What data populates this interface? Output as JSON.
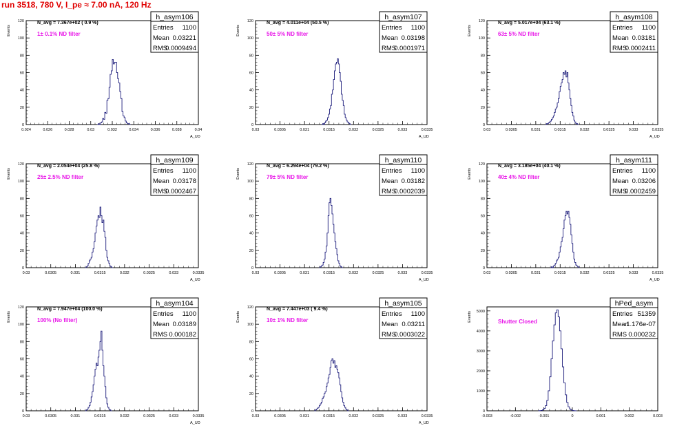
{
  "title": "run 3518,   780 V, I_pe ≈ 7.00 nA, 120 Hz",
  "colors": {
    "hist": "#1a1a7a",
    "title": "#e00000",
    "filter_text": "#e815e8"
  },
  "stats_labels": {
    "entries": "Entries",
    "mean": "Mean",
    "rms": "RMS"
  },
  "panels": [
    {
      "hist_name": "h_asym106",
      "entries": "1100",
      "mean": "0.03221",
      "rms": "0.0009494",
      "navg": "N_avg = 7.367e+02 ( 0.9 %)",
      "filter": "1± 0.1% ND filter",
      "ylabel": "Events",
      "xlabel": "A_UD",
      "xrange": [
        0.024,
        0.04
      ],
      "yrange": [
        0,
        120
      ],
      "xticks": [
        "0.024",
        "0.026",
        "0.028",
        "0.03",
        "0.032",
        "0.034",
        "0.036",
        "0.038",
        "0.04"
      ],
      "xtick_values": [
        0.024,
        0.026,
        0.028,
        0.03,
        0.032,
        0.034,
        0.036,
        0.038,
        0.04
      ],
      "yticks": [
        0,
        20,
        40,
        60,
        80,
        100,
        120
      ]
    },
    {
      "hist_name": "h_asym107",
      "entries": "1100",
      "mean": "0.03198",
      "rms": "0.0001971",
      "navg": "N_avg = 4.011e+04 (50.5 %)",
      "filter": "50± 5% ND filter",
      "ylabel": "Events",
      "xlabel": "A_UD",
      "xrange": [
        0.03,
        0.0335
      ],
      "yrange": [
        0,
        120
      ],
      "xticks": [
        "0.03",
        "0.0305",
        "0.031",
        "0.0315",
        "0.032",
        "0.0325",
        "0.033",
        "0.0335"
      ],
      "xtick_values": [
        0.03,
        0.0305,
        0.031,
        0.0315,
        0.032,
        0.0325,
        0.033,
        0.0335
      ],
      "yticks": [
        0,
        20,
        40,
        60,
        80,
        100,
        120
      ]
    },
    {
      "hist_name": "h_asym108",
      "entries": "1100",
      "mean": "0.03181",
      "rms": "0.0002411",
      "navg": "N_avg = 5.017e+04 (63.1 %)",
      "filter": "63± 5% ND filter",
      "ylabel": "Events",
      "xlabel": "A_UD",
      "xrange": [
        0.03,
        0.0335
      ],
      "yrange": [
        0,
        120
      ],
      "xticks": [
        "0.03",
        "0.0305",
        "0.031",
        "0.0315",
        "0.032",
        "0.0325",
        "0.033",
        "0.0335"
      ],
      "xtick_values": [
        0.03,
        0.0305,
        0.031,
        0.0315,
        0.032,
        0.0325,
        0.033,
        0.0335
      ],
      "yticks": [
        0,
        20,
        40,
        60,
        80,
        100,
        120
      ]
    },
    {
      "hist_name": "h_asym109",
      "entries": "1100",
      "mean": "0.03178",
      "rms": "0.0002467",
      "navg": "N_avg = 2.054e+04 (25.8 %)",
      "filter": "25± 2.5% ND filter",
      "ylabel": "Events",
      "xlabel": "A_UD",
      "xrange": [
        0.03,
        0.0335
      ],
      "yrange": [
        0,
        120
      ],
      "xticks": [
        "0.03",
        "0.0305",
        "0.031",
        "0.0315",
        "0.032",
        "0.0325",
        "0.033",
        "0.0335"
      ],
      "xtick_values": [
        0.03,
        0.0305,
        0.031,
        0.0315,
        0.032,
        0.0325,
        0.033,
        0.0335
      ],
      "yticks": [
        0,
        20,
        40,
        60,
        80,
        100,
        120
      ]
    },
    {
      "hist_name": "h_asym110",
      "entries": "1100",
      "mean": "0.03182",
      "rms": "0.0002039",
      "navg": "N_avg = 6.294e+04 (79.2 %)",
      "filter": "79± 5% ND filter",
      "ylabel": "Events",
      "xlabel": "A_UD",
      "xrange": [
        0.03,
        0.0335
      ],
      "yrange": [
        0,
        120
      ],
      "xticks": [
        "0.03",
        "0.0305",
        "0.031",
        "0.0315",
        "0.032",
        "0.0325",
        "0.033",
        "0.0335"
      ],
      "xtick_values": [
        0.03,
        0.0305,
        0.031,
        0.0315,
        0.032,
        0.0325,
        0.033,
        0.0335
      ],
      "yticks": [
        0,
        20,
        40,
        60,
        80,
        100,
        120
      ]
    },
    {
      "hist_name": "h_asym111",
      "entries": "1100",
      "mean": "0.03206",
      "rms": "0.0002459",
      "navg": "N_avg = 3.185e+04 (40.1 %)",
      "filter": "40± 4% ND filter",
      "ylabel": "Events",
      "xlabel": "A_UD",
      "xrange": [
        0.03,
        0.0335
      ],
      "yrange": [
        0,
        120
      ],
      "xticks": [
        "0.03",
        "0.0305",
        "0.031",
        "0.0315",
        "0.032",
        "0.0325",
        "0.033",
        "0.0335"
      ],
      "xtick_values": [
        0.03,
        0.0305,
        0.031,
        0.0315,
        0.032,
        0.0325,
        0.033,
        0.0335
      ],
      "yticks": [
        0,
        20,
        40,
        60,
        80,
        100,
        120
      ]
    },
    {
      "hist_name": "h_asym104",
      "entries": "1100",
      "mean": "0.03189",
      "rms": "0.000182",
      "navg": "N_avg = 7.947e+04 (100.0 %)",
      "filter": "100% (No filter)",
      "ylabel": "Events",
      "xlabel": "A_UD",
      "xrange": [
        0.03,
        0.0335
      ],
      "yrange": [
        0,
        120
      ],
      "xticks": [
        "0.03",
        "0.0305",
        "0.031",
        "0.0315",
        "0.032",
        "0.0325",
        "0.033",
        "0.0335"
      ],
      "xtick_values": [
        0.03,
        0.0305,
        0.031,
        0.0315,
        0.032,
        0.0325,
        0.033,
        0.0335
      ],
      "yticks": [
        0,
        20,
        40,
        60,
        80,
        100,
        120
      ]
    },
    {
      "hist_name": "h_asym105",
      "entries": "1100",
      "mean": "0.03211",
      "rms": "0.0003022",
      "navg": "N_avg = 7.447e+03 ( 9.4 %)",
      "filter": "10± 1% ND filter",
      "ylabel": "Events",
      "xlabel": "A_UD",
      "xrange": [
        0.03,
        0.0335
      ],
      "yrange": [
        0,
        120
      ],
      "xticks": [
        "0.03",
        "0.0305",
        "0.031",
        "0.0315",
        "0.032",
        "0.0325",
        "0.033",
        "0.0335"
      ],
      "xtick_values": [
        0.03,
        0.0305,
        0.031,
        0.0315,
        0.032,
        0.0325,
        0.033,
        0.0335
      ],
      "yticks": [
        0,
        20,
        40,
        60,
        80,
        100,
        120
      ]
    },
    {
      "hist_name": "hPed_asym",
      "entries": "51359",
      "mean": "1.176e-07",
      "rms": "0.000232",
      "navg": "",
      "filter": "Shutter Closed",
      "ylabel": "Events",
      "xlabel": "",
      "xrange": [
        -0.003,
        0.003
      ],
      "yrange": [
        0,
        5200
      ],
      "xticks": [
        "-0.003",
        "-0.002",
        "-0.001",
        "0",
        "0.001",
        "0.002",
        "0.003"
      ],
      "xtick_values": [
        -0.003,
        -0.002,
        -0.001,
        0,
        0.001,
        0.002,
        0.003
      ],
      "yticks": [
        0,
        1000,
        2000,
        3000,
        4000,
        5000
      ]
    }
  ],
  "chart_data": [
    {
      "type": "histogram",
      "name": "h_asym106",
      "xlim": [
        0.024,
        0.04
      ],
      "ylim": [
        0,
        120
      ],
      "xlabel": "A_UD",
      "ylabel": "Events",
      "bin_edges_start": 0.0306,
      "bin_width": 0.0001,
      "values": [
        0,
        1,
        0,
        2,
        3,
        7,
        6,
        14,
        13,
        28,
        30,
        43,
        58,
        62,
        75,
        70,
        72,
        72,
        60,
        53,
        48,
        38,
        30,
        15,
        10,
        8,
        4,
        2,
        1,
        1,
        0
      ]
    },
    {
      "type": "histogram",
      "name": "h_asym107",
      "xlim": [
        0.03,
        0.0335
      ],
      "ylim": [
        0,
        120
      ],
      "xlabel": "A_UD",
      "ylabel": "Events",
      "bin_edges_start": 0.03135,
      "bin_width": 2e-05,
      "values": [
        0,
        1,
        0,
        2,
        4,
        5,
        8,
        12,
        18,
        22,
        35,
        40,
        52,
        62,
        70,
        72,
        76,
        70,
        60,
        50,
        35,
        28,
        22,
        12,
        8,
        5,
        3,
        2,
        1,
        0
      ]
    },
    {
      "type": "histogram",
      "name": "h_asym108",
      "xlim": [
        0.03,
        0.0335
      ],
      "ylim": [
        0,
        120
      ],
      "xlabel": "A_UD",
      "ylabel": "Events",
      "bin_edges_start": 0.0312,
      "bin_width": 2e-05,
      "values": [
        0,
        1,
        1,
        2,
        3,
        4,
        6,
        8,
        10,
        14,
        18,
        20,
        25,
        30,
        38,
        44,
        48,
        52,
        60,
        58,
        62,
        55,
        60,
        48,
        40,
        30,
        22,
        14,
        10,
        5,
        3,
        1,
        1,
        0
      ]
    },
    {
      "type": "histogram",
      "name": "h_asym109",
      "xlim": [
        0.03,
        0.0335
      ],
      "ylim": [
        0,
        120
      ],
      "xlabel": "A_UD",
      "ylabel": "Events",
      "bin_edges_start": 0.0312,
      "bin_width": 2e-05,
      "values": [
        0,
        1,
        2,
        5,
        8,
        10,
        12,
        18,
        22,
        30,
        40,
        48,
        55,
        60,
        58,
        70,
        60,
        52,
        55,
        42,
        35,
        20,
        12,
        8,
        5,
        2,
        1,
        0
      ]
    },
    {
      "type": "histogram",
      "name": "h_asym110",
      "xlim": [
        0.03,
        0.0335
      ],
      "ylim": [
        0,
        120
      ],
      "xlabel": "A_UD",
      "ylabel": "Events",
      "bin_edges_start": 0.0313,
      "bin_width": 2e-05,
      "values": [
        0,
        1,
        2,
        3,
        6,
        10,
        18,
        25,
        40,
        60,
        75,
        80,
        72,
        62,
        50,
        40,
        30,
        22,
        15,
        8,
        5,
        2,
        1,
        0
      ]
    },
    {
      "type": "histogram",
      "name": "h_asym111",
      "xlim": [
        0.03,
        0.0335
      ],
      "ylim": [
        0,
        120
      ],
      "xlabel": "A_UD",
      "ylabel": "Events",
      "bin_edges_start": 0.0313,
      "bin_width": 2e-05,
      "values": [
        0,
        1,
        0,
        2,
        3,
        5,
        8,
        10,
        12,
        18,
        24,
        30,
        35,
        45,
        55,
        60,
        65,
        62,
        65,
        58,
        50,
        38,
        28,
        18,
        10,
        6,
        3,
        2,
        1,
        0
      ]
    },
    {
      "type": "histogram",
      "name": "h_asym104",
      "xlim": [
        0.03,
        0.0335
      ],
      "ylim": [
        0,
        120
      ],
      "xlabel": "A_UD",
      "ylabel": "Events",
      "bin_edges_start": 0.0312,
      "bin_width": 2e-05,
      "values": [
        0,
        1,
        2,
        4,
        6,
        10,
        16,
        22,
        30,
        40,
        48,
        55,
        52,
        62,
        70,
        80,
        92,
        70,
        52,
        40,
        28,
        15,
        8,
        4,
        2,
        1,
        0
      ]
    },
    {
      "type": "histogram",
      "name": "h_asym105",
      "xlim": [
        0.03,
        0.0335
      ],
      "ylim": [
        0,
        120
      ],
      "xlabel": "A_UD",
      "ylabel": "Events",
      "bin_edges_start": 0.0312,
      "bin_width": 2e-05,
      "values": [
        0,
        1,
        2,
        3,
        4,
        6,
        8,
        10,
        14,
        16,
        20,
        22,
        28,
        32,
        38,
        42,
        50,
        58,
        60,
        55,
        58,
        50,
        52,
        48,
        44,
        38,
        30,
        22,
        15,
        10,
        6,
        4,
        2,
        1,
        0
      ]
    },
    {
      "type": "histogram",
      "name": "hPed_asym",
      "xlim": [
        -0.003,
        0.003
      ],
      "ylim": [
        0,
        5200
      ],
      "ylabel": "Events",
      "bin_edges_start": -0.0012,
      "bin_width": 5e-05,
      "values": [
        0,
        10,
        20,
        50,
        120,
        260,
        520,
        1000,
        1700,
        2600,
        3500,
        4300,
        4900,
        5050,
        4700,
        4000,
        3100,
        2200,
        1400,
        800,
        420,
        200,
        90,
        40,
        15,
        5,
        0
      ]
    }
  ]
}
